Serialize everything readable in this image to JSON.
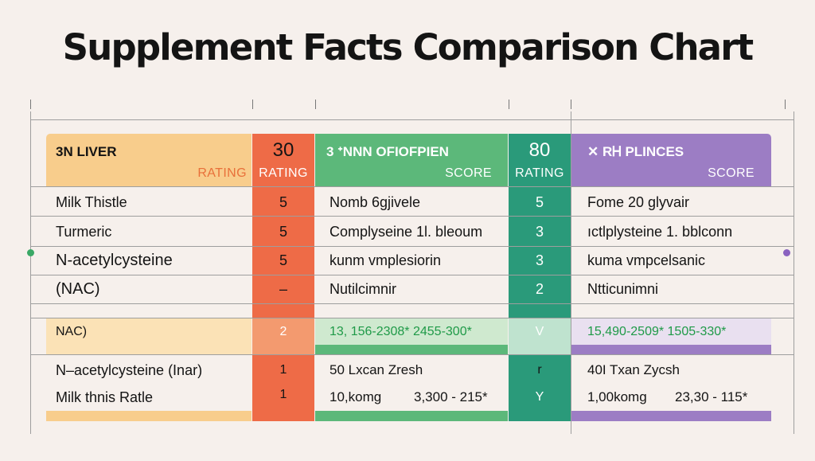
{
  "title": "Supplement Facts Comparison Chart",
  "colors": {
    "background": "#f6f0ec",
    "yellow": "#f8cd8c",
    "yellow_light": "#fbe2b6",
    "orange": "#ee6b47",
    "orange_light": "#f39a6f",
    "green": "#5cb87a",
    "green_light": "#cfe9cf",
    "teal": "#2a9a7a",
    "teal_light": "#bfe3cf",
    "purple": "#9c7dc4",
    "purple_light": "#e9e0f0",
    "text_orange": "#e8703a",
    "text_green": "#1f9a48"
  },
  "header": {
    "col1_title": "3N LIVER",
    "col1_sub": "RATING",
    "col2_title": "30",
    "col2_sub": "RATING",
    "col3_title": "3  ᐩNNN OFIOFPIEN",
    "col3_sub": "SCORE",
    "col4_title": "80",
    "col4_sub": "RATING",
    "col5_title": "✕ RᎻ PLINCES",
    "col5_sub": "SCORE"
  },
  "rows_top": [
    {
      "name": "Milk Thistle",
      "r1": "5",
      "d1": "Nomb  6gjivele",
      "r2": "5",
      "d2": "Fome 20 glyvair"
    },
    {
      "name": "Turmeric",
      "r1": "5",
      "d1": "Complyseine 1l. bleoum",
      "r2": "3",
      "d2": "ıctlplysteine 1. bblconn"
    },
    {
      "name": "N-acetylcysteine",
      "r1": "5",
      "d1": "kunm vmplesiorin",
      "r2": "3",
      "d2": "kuma vmpcelsanic"
    },
    {
      "name": "(NAC)",
      "r1": "–",
      "d1": "Nutilcimnir",
      "r2": "2",
      "d2": "Ntticunimni"
    }
  ],
  "row_mid": {
    "name": "NAC)",
    "r1": "2",
    "d1": "13, 156-2308* 2455-300*",
    "r2": "V",
    "d2": "15,490-2509* 1505-330*"
  },
  "rows_bottom": [
    {
      "name": "N–acetylcysteine (Inar)",
      "r1": "1",
      "d1": "50 Lxcan Zresh",
      "r2": "r",
      "d2": "40I Txan Zycsh"
    },
    {
      "name": "Milk thnis Ratle",
      "r1": "1",
      "d1a": "10,komg",
      "d1b": "3,300 - 215*",
      "r2": "Y",
      "d2a": "1,00komg",
      "d2b": "23,30 - 115*"
    }
  ]
}
